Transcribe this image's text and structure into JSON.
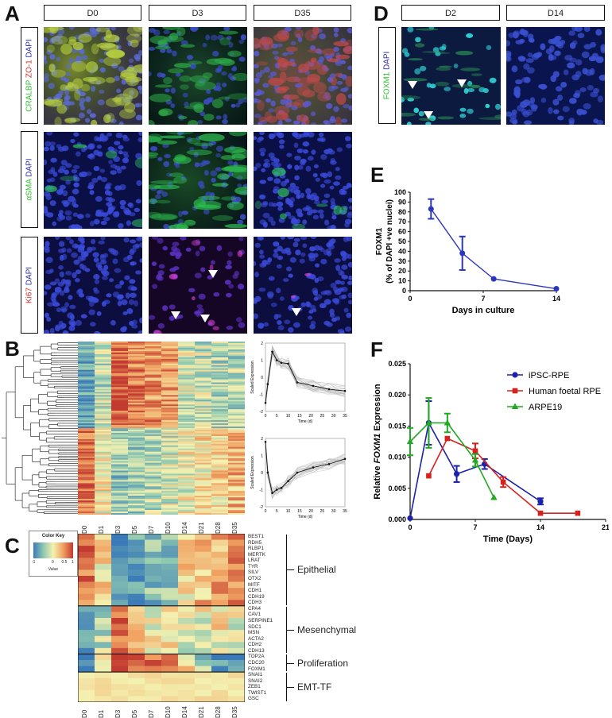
{
  "panels": {
    "A": "A",
    "B": "B",
    "C": "C",
    "D": "D",
    "E": "E",
    "F": "F"
  },
  "panelA": {
    "columns": [
      "D0",
      "D3",
      "D35"
    ],
    "rows": [
      {
        "stain": [
          {
            "t": "CRALBP",
            "c": "#2fbf2f"
          },
          {
            "t": " ZO-1",
            "c": "#d42a2a"
          },
          {
            "t": " DAPI",
            "c": "#2a2ab0"
          }
        ]
      },
      {
        "stain": [
          {
            "t": "αSMA",
            "c": "#2fbf2f"
          },
          {
            "t": " DAPI",
            "c": "#2a2ab0"
          }
        ]
      },
      {
        "stain": [
          {
            "t": "Ki67",
            "c": "#d42a2a"
          },
          {
            "t": " DAPI",
            "c": "#2a2ab0"
          }
        ]
      }
    ]
  },
  "panelD": {
    "columns": [
      "D2",
      "D14"
    ],
    "row": {
      "stain": [
        {
          "t": "FOXM1",
          "c": "#2fbf2f"
        },
        {
          "t": " DAPI",
          "c": "#2a2ab0"
        }
      ]
    }
  },
  "heatmap": {
    "timepoints": [
      "D0",
      "D1",
      "D3",
      "D5",
      "D7",
      "D10",
      "D14",
      "D21",
      "D28",
      "D35"
    ],
    "profile_ylabel": "Scaled Expression",
    "profile_xlabel": "Time (d)",
    "profile_xticks": [
      "0",
      "5",
      "10",
      "15",
      "20",
      "25",
      "30",
      "35"
    ],
    "profile_yticks": [
      "2",
      "1",
      "0",
      "-1",
      "-2"
    ]
  },
  "colorkey": {
    "title": "Color Key",
    "label": "Value",
    "ticks": [
      "-1",
      "0",
      "0.5",
      "1"
    ]
  },
  "panelC": {
    "groups": [
      {
        "name": "Epithelial",
        "genes": [
          "BEST1",
          "RDH5",
          "RLBP1",
          "MERTK",
          "LRAT",
          "TYR",
          "SILV",
          "OTX2",
          "MITF",
          "CDH1",
          "CDH19",
          "CDH3"
        ]
      },
      {
        "name": "Mesenchymal",
        "genes": [
          "CPA4",
          "CAV1",
          "SERPINE1",
          "SDC1",
          "MSN",
          "ACTA2",
          "CDH2",
          "CDH13"
        ]
      },
      {
        "name": "Proliferation",
        "genes": [
          "TOP2A",
          "CDC20",
          "FOXM1"
        ]
      },
      {
        "name": "EMT-TF",
        "genes": [
          "SNAI1",
          "SNAI2",
          "ZEB1",
          "TWIST1",
          "GSC"
        ]
      }
    ]
  },
  "chart_data": [
    {
      "type": "line",
      "panel": "E",
      "xlabel": "Days in culture",
      "ylabel": "FOXM1 (% of DAPI +ve nuclei)",
      "ylabel_line1": "FOXM1",
      "ylabel_line2": "(% of DAPI +ve nuclei)",
      "xlim": [
        0,
        14
      ],
      "ylim": [
        0,
        100
      ],
      "xticks": [
        0,
        7,
        14
      ],
      "yticks": [
        0,
        10,
        20,
        30,
        40,
        50,
        60,
        70,
        80,
        90,
        100
      ],
      "series": [
        {
          "color": "#2b36c0",
          "x": [
            2,
            5,
            8,
            14
          ],
          "y": [
            83,
            38,
            12,
            2
          ],
          "err": [
            10,
            17,
            0,
            0
          ]
        }
      ]
    },
    {
      "type": "line",
      "panel": "F",
      "xlabel": "Time (Days)",
      "ylabel": "Relative FOXM1 Expression",
      "ylabel_parts": [
        "Relative ",
        "FOXM1",
        " Expression"
      ],
      "xlim": [
        0,
        21
      ],
      "ylim": [
        0,
        0.025
      ],
      "xticks": [
        0,
        7,
        14,
        21
      ],
      "yticks": [
        "0.000",
        "0.005",
        "0.010",
        "0.015",
        "0.020",
        "0.025"
      ],
      "legend_position": "top-right",
      "series": [
        {
          "name": "iPSC-RPE",
          "color": "#1d22a8",
          "marker": "circle",
          "x": [
            0,
            2,
            5,
            8,
            14
          ],
          "y": [
            0.0002,
            0.0155,
            0.0073,
            0.0089,
            0.0029
          ],
          "err": [
            0,
            0.0035,
            0.0013,
            0.0008,
            0.0005
          ]
        },
        {
          "name": "Human foetal RPE",
          "color": "#d8201c",
          "marker": "square",
          "x": [
            2,
            4,
            7,
            10,
            14,
            18
          ],
          "y": [
            0.007,
            0.013,
            0.011,
            0.006,
            0.001,
            0.001
          ],
          "err": [
            0,
            0,
            0.0012,
            0.0008,
            0,
            0
          ]
        },
        {
          "name": "ARPE19",
          "color": "#22a822",
          "marker": "triangle",
          "x": [
            0,
            2,
            4,
            7,
            9
          ],
          "y": [
            0.0125,
            0.0155,
            0.0155,
            0.0095,
            0.0035
          ],
          "err": [
            0.0022,
            0.004,
            0.0015,
            0.001,
            0
          ]
        }
      ]
    }
  ]
}
